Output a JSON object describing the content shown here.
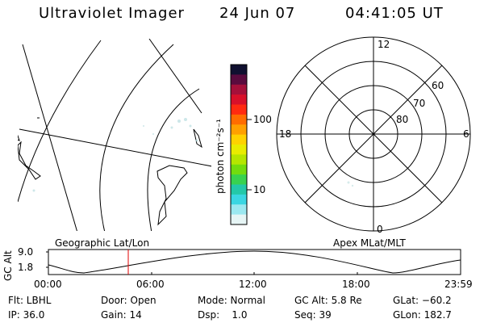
{
  "header": {
    "app_title": "Ultraviolet Imager",
    "date": "24 Jun 07",
    "time": "04:41:05 UT"
  },
  "colorbar": {
    "unit_label": "photon cm⁻²s⁻¹",
    "ticks": [
      "100",
      "10"
    ],
    "colors": [
      "#101030",
      "#5a0b3e",
      "#a5103a",
      "#d8102a",
      "#ff2a10",
      "#ff6c00",
      "#ffa000",
      "#ffd200",
      "#e9ec00",
      "#b5e600",
      "#72dc0e",
      "#38d24f",
      "#23c8a8",
      "#3ad6e2",
      "#9be8f0",
      "#e6f5f5"
    ]
  },
  "geo_panel": {
    "label": "Geographic Lat/Lon"
  },
  "polar_panel": {
    "label": "Apex MLat/MLT",
    "mlt_labels": {
      "top": "12",
      "left": "18",
      "right": "6",
      "bottom": "0"
    },
    "lat_labels": [
      "60",
      "70",
      "80"
    ]
  },
  "altitude_plot": {
    "ylabel": "GC Alt",
    "yticks": [
      "9.0",
      "1.8"
    ],
    "xticks": [
      "00:00",
      "06:00",
      "12:00",
      "18:00",
      "23:59"
    ],
    "marker_time": "04:41"
  },
  "info": {
    "flt": "Flt: LBHL",
    "ip": "IP: 36.0",
    "door": "Door: Open",
    "gain": "Gain: 14",
    "mode": "Mode: Normal",
    "dsp": "Dsp:    1.0",
    "gc_alt": "GC Alt: 5.8 Re",
    "seq": "Seq: 39",
    "glat": "GLat: −60.2",
    "glon": "GLon: 182.7"
  }
}
